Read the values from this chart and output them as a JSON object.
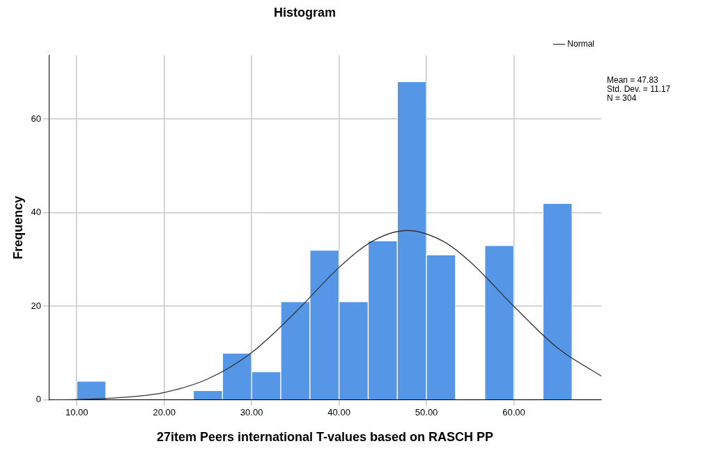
{
  "chart_data": {
    "type": "histogram",
    "title": "Histogram",
    "xlabel": "27item Peers international T-values based on RASCH PP",
    "ylabel": "Frequency",
    "bins": [
      10,
      13.33,
      16.67,
      20,
      23.33,
      26.67,
      30,
      33.33,
      36.67,
      40,
      43.33,
      46.67,
      50,
      53.33,
      56.67,
      60,
      63.33,
      66.67
    ],
    "values": [
      4,
      0,
      0,
      0,
      2,
      10,
      6,
      21,
      32,
      21,
      34,
      68,
      31,
      0,
      33,
      0,
      42
    ],
    "color": "#5596e6",
    "series": [
      {
        "type": "line",
        "name": "Normal",
        "color": "#333333",
        "x": [
          7,
          10,
          15,
          20,
          25,
          30,
          35,
          40,
          44,
          47.83,
          52,
          55,
          60,
          65,
          70
        ],
        "values": [
          0,
          0.1,
          0.5,
          1.6,
          4.5,
          10.1,
          18.7,
          28.3,
          34.1,
          36.2,
          33.8,
          29.5,
          20.0,
          11.1,
          5.1
        ]
      }
    ],
    "xlim": [
      6.8,
      70
    ],
    "xticks": [
      {
        "value": 10,
        "label": "10.00"
      },
      {
        "value": 20,
        "label": "20.00"
      },
      {
        "value": 30,
        "label": "30.00"
      },
      {
        "value": 40,
        "label": "40.00"
      },
      {
        "value": 50,
        "label": "50.00"
      },
      {
        "value": 60,
        "label": "60.00"
      }
    ],
    "ylim": [
      0,
      73.6
    ],
    "yticks": [
      0,
      20,
      40,
      60
    ],
    "grid": true,
    "legend": "top right",
    "marker": "none",
    "line_style": "solid",
    "annotations": [
      "Mean = 47.83",
      "Std. Dev. = 11.17",
      "N = 304"
    ]
  }
}
